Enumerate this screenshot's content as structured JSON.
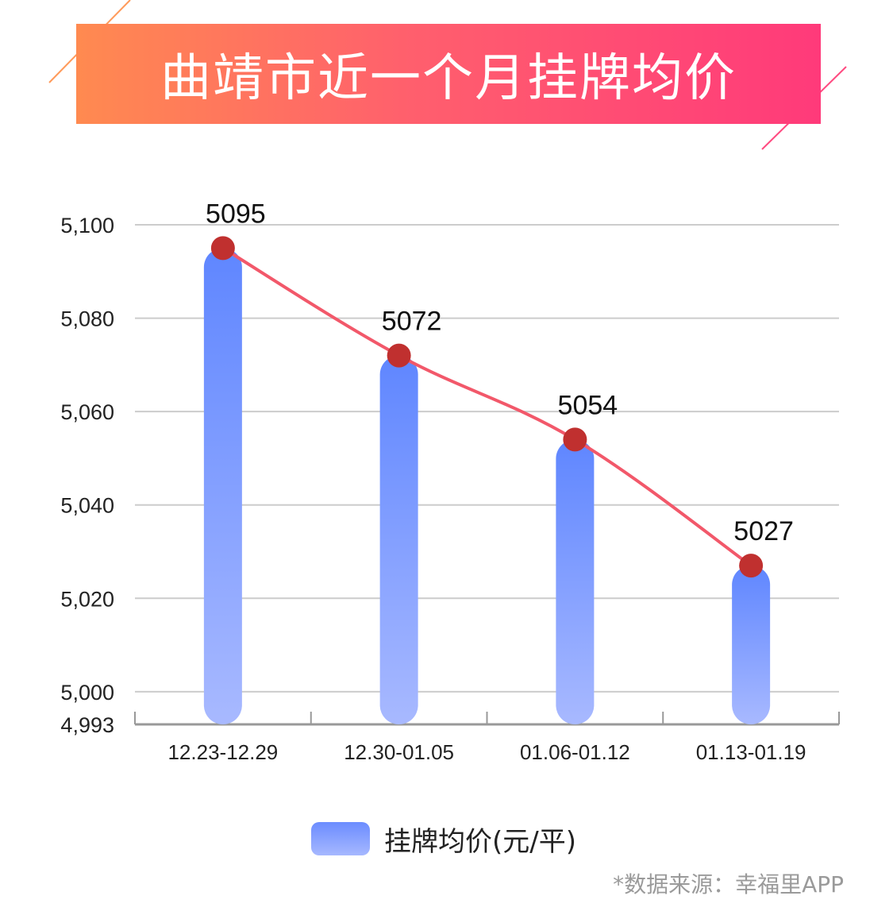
{
  "title": "曲靖市近一个月挂牌均价",
  "source_note": "*数据来源：幸福里APP",
  "colors": {
    "banner_start": "#ff8a50",
    "banner_end": "#ff3a7a",
    "bar_top": "#5f86ff",
    "bar_bottom": "#a8b9ff",
    "line": "#f2586a",
    "point": "#c0302f",
    "grid": "#cccccc",
    "axis": "#999999"
  },
  "chart_data": {
    "type": "bar",
    "title": "曲靖市近一个月挂牌均价",
    "categories": [
      "12.23-12.29",
      "12.30-01.05",
      "01.06-01.12",
      "01.13-01.19"
    ],
    "series": [
      {
        "name": "挂牌均价(元/平)",
        "type": "bar",
        "values": [
          5095,
          5072,
          5054,
          5027
        ]
      },
      {
        "type": "line",
        "values": [
          5095,
          5072,
          5054,
          5027
        ]
      }
    ],
    "data_labels": [
      "5095",
      "5072",
      "5054",
      "5027"
    ],
    "y_ticks": [
      "5,100",
      "5,080",
      "5,060",
      "5,040",
      "5,020",
      "5,000",
      "4,993"
    ],
    "y_tick_values": [
      5100,
      5080,
      5060,
      5040,
      5020,
      5000,
      4993
    ],
    "ylim": [
      4993,
      5100
    ],
    "grid": true,
    "legend_position": "bottom-center"
  }
}
